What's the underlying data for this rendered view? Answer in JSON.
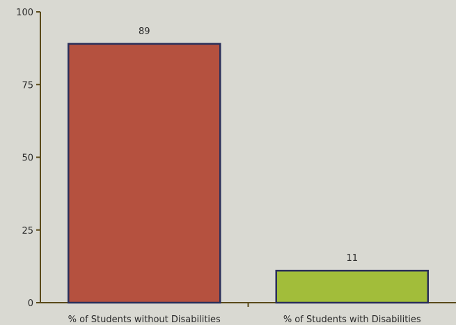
{
  "chart_data": {
    "type": "bar",
    "categories": [
      "% of Students without Disabilities",
      "% of Students with Disabilities"
    ],
    "values": [
      89,
      11
    ],
    "data_labels": [
      "89",
      "11"
    ],
    "yticks": [
      0,
      25,
      50,
      75,
      100
    ],
    "ylim": [
      0,
      100
    ],
    "title": "",
    "xlabel": "",
    "ylabel": "",
    "grid": false,
    "colors": {
      "bars": [
        "#b5513f",
        "#a2bd3a"
      ],
      "bar_border": "#2a2f5a",
      "axis": "#5a4a1a",
      "background": "#d9d9d2"
    }
  }
}
